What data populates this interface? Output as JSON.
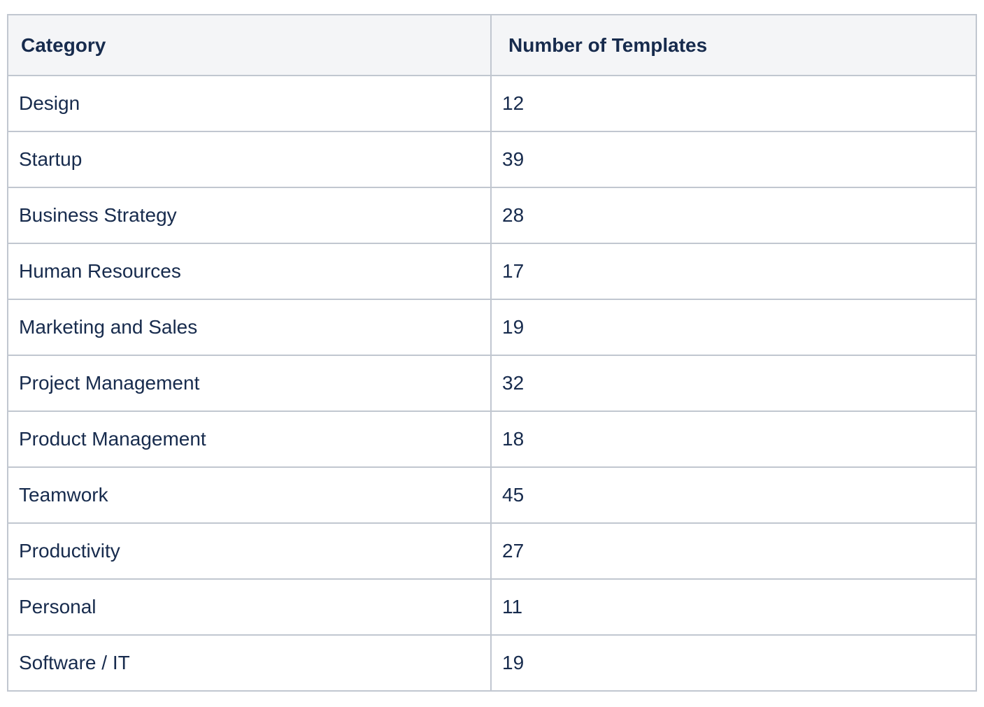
{
  "table": {
    "headers": [
      "Category",
      "Number of Templates"
    ],
    "rows": [
      [
        "Design",
        "12"
      ],
      [
        "Startup",
        "39"
      ],
      [
        "Business Strategy",
        "28"
      ],
      [
        "Human Resources",
        "17"
      ],
      [
        "Marketing and Sales",
        "19"
      ],
      [
        "Project Management",
        "32"
      ],
      [
        "Product Management",
        "18"
      ],
      [
        "Teamwork",
        "45"
      ],
      [
        "Productivity",
        "27"
      ],
      [
        "Personal",
        "11"
      ],
      [
        "Software / IT",
        "19"
      ]
    ]
  },
  "colors": {
    "header_background": "#f4f5f7",
    "border": "#c1c7d0",
    "text": "#172b4d"
  }
}
